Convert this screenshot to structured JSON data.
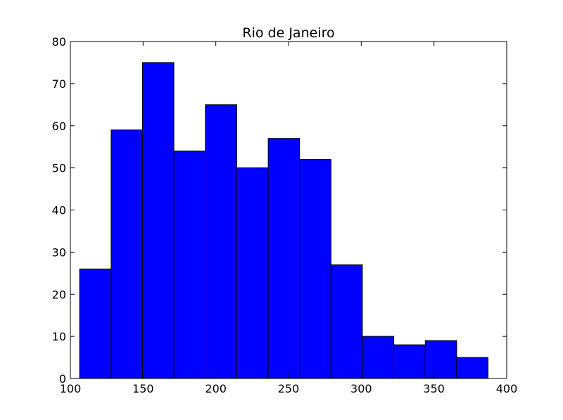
{
  "chart_data": {
    "type": "bar",
    "title": "Rio de Janeiro",
    "xlabel": "",
    "ylabel": "",
    "xlim": [
      100,
      400
    ],
    "ylim": [
      0,
      80
    ],
    "x_ticks": [
      100,
      150,
      200,
      250,
      300,
      350,
      400
    ],
    "y_ticks": [
      0,
      10,
      20,
      30,
      40,
      50,
      60,
      70,
      80
    ],
    "bar_color": "#0000ff",
    "edge_color": "#000000",
    "grid": false,
    "bins": [
      {
        "x0": 106.4,
        "x1": 128.0,
        "count": 26
      },
      {
        "x0": 128.0,
        "x1": 149.6,
        "count": 59
      },
      {
        "x0": 149.6,
        "x1": 171.2,
        "count": 75
      },
      {
        "x0": 171.2,
        "x1": 192.8,
        "count": 54
      },
      {
        "x0": 192.8,
        "x1": 214.4,
        "count": 65
      },
      {
        "x0": 214.4,
        "x1": 236.0,
        "count": 50
      },
      {
        "x0": 236.0,
        "x1": 257.6,
        "count": 57
      },
      {
        "x0": 257.6,
        "x1": 279.2,
        "count": 52
      },
      {
        "x0": 279.2,
        "x1": 300.8,
        "count": 27
      },
      {
        "x0": 300.8,
        "x1": 322.4,
        "count": 10
      },
      {
        "x0": 322.4,
        "x1": 344.0,
        "count": 8
      },
      {
        "x0": 344.0,
        "x1": 365.6,
        "count": 9
      },
      {
        "x0": 365.6,
        "x1": 387.2,
        "count": 5
      }
    ]
  }
}
